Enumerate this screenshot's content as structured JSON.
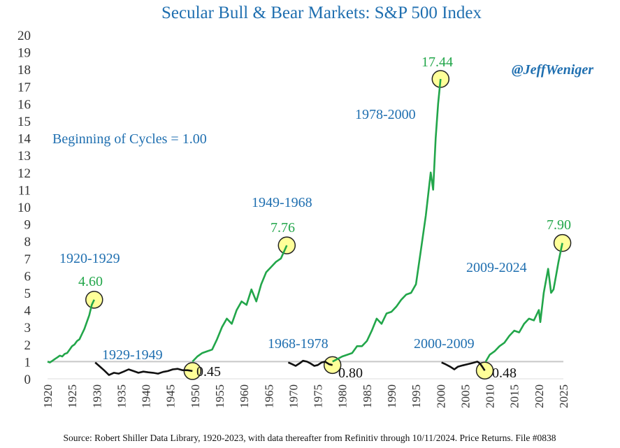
{
  "colors": {
    "bull": "#22a64a",
    "bear": "#111111",
    "title": "#1f6fb0",
    "baseline": "#c8c8c8",
    "highlight": "#ffff99"
  },
  "title": "Secular Bull & Bear Markets: S&P 500 Index",
  "handle": "@JeffWeniger",
  "note": "Beginning of Cycles = 1.00",
  "source": "Source: Robert Shiller Data Library, 1920-2023, with data thereafter from Refinitiv through 10/11/2024. Price Returns. File #0838",
  "chart_data": {
    "type": "line",
    "xlim": [
      1920,
      2025
    ],
    "ylim": [
      0,
      20
    ],
    "baseline": 1.0,
    "grid": false,
    "x_ticks": [
      1920,
      1925,
      1930,
      1935,
      1940,
      1945,
      1950,
      1955,
      1960,
      1965,
      1970,
      1975,
      1980,
      1985,
      1990,
      1995,
      2000,
      2005,
      2010,
      2015,
      2020,
      2025
    ],
    "x_tick_labels": [
      "1920",
      "1925",
      "1930",
      "1935",
      "1940",
      "1945",
      "1950",
      "1955",
      "1960",
      "1965",
      "1970",
      "1975",
      "1980",
      "1985",
      "1990",
      "1995",
      "2000",
      "2005",
      "2010",
      "2015",
      "2020",
      "2025"
    ],
    "y_ticks": [
      0,
      1,
      2,
      3,
      4,
      5,
      6,
      7,
      8,
      9,
      10,
      11,
      12,
      13,
      14,
      15,
      16,
      17,
      18,
      19,
      20
    ],
    "y_tick_labels": [
      "0",
      "1",
      "2",
      "3",
      "4",
      "5",
      "6",
      "7",
      "8",
      "9",
      "10",
      "11",
      "12",
      "13",
      "14",
      "15",
      "16",
      "17",
      "18",
      "19",
      "20"
    ],
    "series": [
      {
        "cycle": "1920-1929",
        "kind": "bull",
        "end_value": "4.60",
        "x": [
          1920.0,
          1920.5,
          1921.0,
          1921.5,
          1922.0,
          1922.5,
          1923.0,
          1923.5,
          1924.0,
          1924.5,
          1925.0,
          1925.5,
          1926.0,
          1926.5,
          1927.0,
          1927.5,
          1928.0,
          1928.5,
          1929.0,
          1929.5
        ],
        "y": [
          1.0,
          0.95,
          1.05,
          1.15,
          1.25,
          1.35,
          1.3,
          1.45,
          1.5,
          1.7,
          1.9,
          2.0,
          2.2,
          2.3,
          2.6,
          2.9,
          3.3,
          3.7,
          4.3,
          4.6
        ]
      },
      {
        "cycle": "1929-1949",
        "kind": "bear",
        "end_value": "0.45",
        "x": [
          1929.7,
          1930.5,
          1931.5,
          1932.5,
          1933.5,
          1934.5,
          1935.5,
          1936.5,
          1937.5,
          1938.5,
          1939.5,
          1940.5,
          1941.5,
          1942.5,
          1943.5,
          1944.5,
          1945.5,
          1946.5,
          1947.5,
          1948.5,
          1949.5
        ],
        "y": [
          0.95,
          0.75,
          0.5,
          0.22,
          0.35,
          0.3,
          0.42,
          0.55,
          0.45,
          0.35,
          0.42,
          0.38,
          0.35,
          0.3,
          0.4,
          0.45,
          0.55,
          0.58,
          0.5,
          0.5,
          0.45
        ]
      },
      {
        "cycle": "1949-1968",
        "kind": "bull",
        "end_value": "7.76",
        "x": [
          1949.5,
          1950.5,
          1951.5,
          1952.5,
          1953.5,
          1954.5,
          1955.5,
          1956.5,
          1957.5,
          1958.5,
          1959.5,
          1960.5,
          1961.5,
          1962.5,
          1963.5,
          1964.5,
          1965.5,
          1966.5,
          1967.5,
          1968.7
        ],
        "y": [
          1.0,
          1.3,
          1.5,
          1.6,
          1.7,
          2.3,
          3.0,
          3.5,
          3.2,
          4.0,
          4.5,
          4.3,
          5.2,
          4.5,
          5.5,
          6.2,
          6.5,
          6.8,
          7.0,
          7.76
        ]
      },
      {
        "cycle": "1968-1978",
        "kind": "bear",
        "end_value": "0.80",
        "x": [
          1969.0,
          1969.8,
          1970.5,
          1971.3,
          1972.0,
          1972.8,
          1973.5,
          1974.3,
          1975.0,
          1975.8,
          1976.5,
          1977.3,
          1978.0
        ],
        "y": [
          0.95,
          0.85,
          0.75,
          0.9,
          1.05,
          1.0,
          0.9,
          0.75,
          0.8,
          0.95,
          1.0,
          0.85,
          0.8
        ]
      },
      {
        "cycle": "1978-2000",
        "kind": "bull",
        "end_value": "17.44",
        "x": [
          1978.0,
          1979.0,
          1980.0,
          1981.0,
          1982.0,
          1983.0,
          1984.0,
          1985.0,
          1986.0,
          1987.0,
          1988.0,
          1989.0,
          1990.0,
          1991.0,
          1992.0,
          1993.0,
          1994.0,
          1995.0,
          1996.0,
          1997.0,
          1998.0,
          1998.5,
          1999.0,
          1999.5,
          2000.0
        ],
        "y": [
          1.0,
          1.15,
          1.3,
          1.4,
          1.5,
          1.9,
          1.9,
          2.2,
          2.8,
          3.5,
          3.2,
          3.8,
          3.9,
          4.2,
          4.6,
          4.9,
          5.0,
          5.5,
          7.5,
          9.5,
          12.0,
          11.0,
          14.0,
          16.0,
          17.44
        ]
      },
      {
        "cycle": "2000-2009",
        "kind": "bear",
        "end_value": "0.48",
        "x": [
          2000.2,
          2001.0,
          2002.0,
          2002.8,
          2003.5,
          2004.5,
          2005.5,
          2006.5,
          2007.5,
          2008.0,
          2008.5,
          2009.0
        ],
        "y": [
          0.95,
          0.85,
          0.7,
          0.55,
          0.7,
          0.78,
          0.85,
          0.92,
          1.0,
          0.9,
          0.7,
          0.48
        ]
      },
      {
        "cycle": "2009-2024",
        "kind": "bull",
        "end_value": "7.90",
        "x": [
          2009.2,
          2010.0,
          2011.0,
          2012.0,
          2013.0,
          2014.0,
          2015.0,
          2016.0,
          2017.0,
          2018.0,
          2019.0,
          2020.0,
          2020.3,
          2021.0,
          2021.9,
          2022.5,
          2023.0,
          2023.5,
          2024.0,
          2024.8
        ],
        "y": [
          1.0,
          1.4,
          1.6,
          1.9,
          2.1,
          2.5,
          2.8,
          2.7,
          3.2,
          3.5,
          3.4,
          4.0,
          3.3,
          5.0,
          6.4,
          5.0,
          5.2,
          6.0,
          6.8,
          7.9
        ]
      }
    ],
    "annotations": {
      "cycles": [
        "1920-1929",
        "1929-1949",
        "1949-1968",
        "1968-1978",
        "1978-2000",
        "2000-2009",
        "2009-2024"
      ],
      "peaks": [
        "4.60",
        "7.76",
        "17.44",
        "7.90"
      ],
      "troughs": [
        "0.45",
        "0.80",
        "0.48"
      ]
    }
  }
}
